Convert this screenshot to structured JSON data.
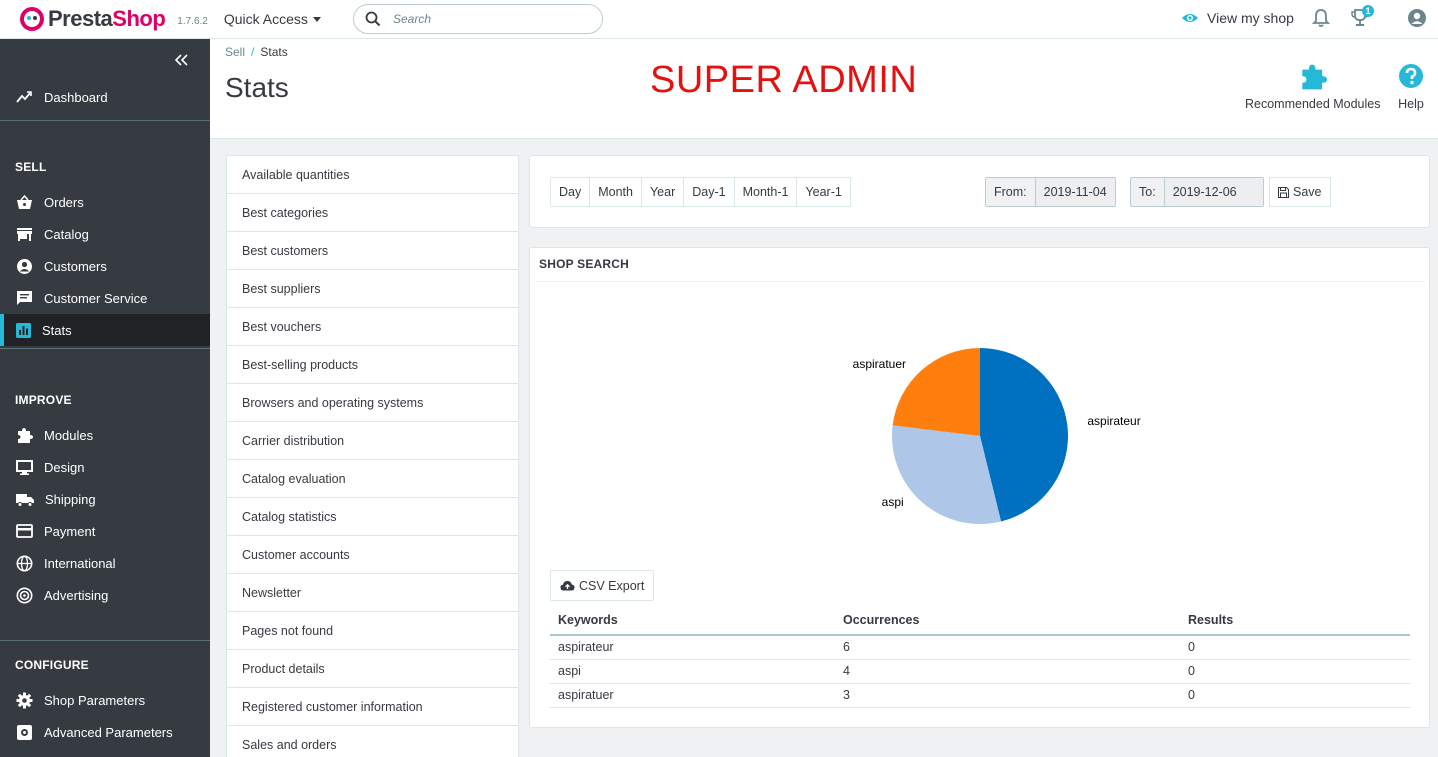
{
  "header": {
    "logo_part1": "Presta",
    "logo_part2": "Shop",
    "version": "1.7.6.2",
    "quick_access_label": "Quick Access",
    "search_placeholder": "Search",
    "view_shop_label": "View my shop",
    "notification_count": "1",
    "accent_color": "#25b9d7",
    "brand_color": "#df0067"
  },
  "sidebar": {
    "items_top": [
      {
        "label": "Dashboard",
        "icon": "trending-up-icon"
      }
    ],
    "sections": [
      {
        "title": "SELL",
        "items": [
          {
            "label": "Orders",
            "icon": "basket-icon"
          },
          {
            "label": "Catalog",
            "icon": "store-icon"
          },
          {
            "label": "Customers",
            "icon": "account-circle-icon"
          },
          {
            "label": "Customer Service",
            "icon": "chat-icon"
          },
          {
            "label": "Stats",
            "icon": "bar-chart-icon",
            "active": true
          }
        ]
      },
      {
        "title": "IMPROVE",
        "items": [
          {
            "label": "Modules",
            "icon": "puzzle-icon"
          },
          {
            "label": "Design",
            "icon": "monitor-icon"
          },
          {
            "label": "Shipping",
            "icon": "truck-icon"
          },
          {
            "label": "Payment",
            "icon": "credit-card-icon"
          },
          {
            "label": "International",
            "icon": "globe-icon"
          },
          {
            "label": "Advertising",
            "icon": "target-icon"
          }
        ]
      },
      {
        "title": "CONFIGURE",
        "items": [
          {
            "label": "Shop Parameters",
            "icon": "gear-icon"
          },
          {
            "label": "Advanced Parameters",
            "icon": "settings-box-icon"
          }
        ]
      }
    ]
  },
  "page_head": {
    "breadcrumb_parent": "Sell",
    "breadcrumb_sep": "/",
    "breadcrumb_current": "Stats",
    "title": "Stats",
    "banner": "SUPER ADMIN",
    "recommended_modules_label": "Recommended Modules",
    "help_label": "Help"
  },
  "modules": [
    "Available quantities",
    "Best categories",
    "Best customers",
    "Best suppliers",
    "Best vouchers",
    "Best-selling products",
    "Browsers and operating systems",
    "Carrier distribution",
    "Catalog evaluation",
    "Catalog statistics",
    "Customer accounts",
    "Newsletter",
    "Pages not found",
    "Product details",
    "Registered customer information",
    "Sales and orders"
  ],
  "date_range": {
    "periods": [
      "Day",
      "Month",
      "Year",
      "Day-1",
      "Month-1",
      "Year-1"
    ],
    "from_label": "From:",
    "from_value": "2019-11-04",
    "to_label": "To:",
    "to_value": "2019-12-06",
    "save_label": "Save"
  },
  "shop_search": {
    "heading": "SHOP SEARCH",
    "csv_label": "CSV Export",
    "columns": [
      "Keywords",
      "Occurrences",
      "Results"
    ],
    "rows": [
      [
        "aspirateur",
        "6",
        "0"
      ],
      [
        "aspi",
        "4",
        "0"
      ],
      [
        "aspiratuer",
        "3",
        "0"
      ]
    ]
  },
  "chart_data": {
    "type": "pie",
    "categories": [
      "aspirateur",
      "aspi",
      "aspiratuer"
    ],
    "values": [
      6,
      4,
      3
    ],
    "colors": [
      "#0070c0",
      "#aec7e8",
      "#ff7f0e"
    ]
  }
}
